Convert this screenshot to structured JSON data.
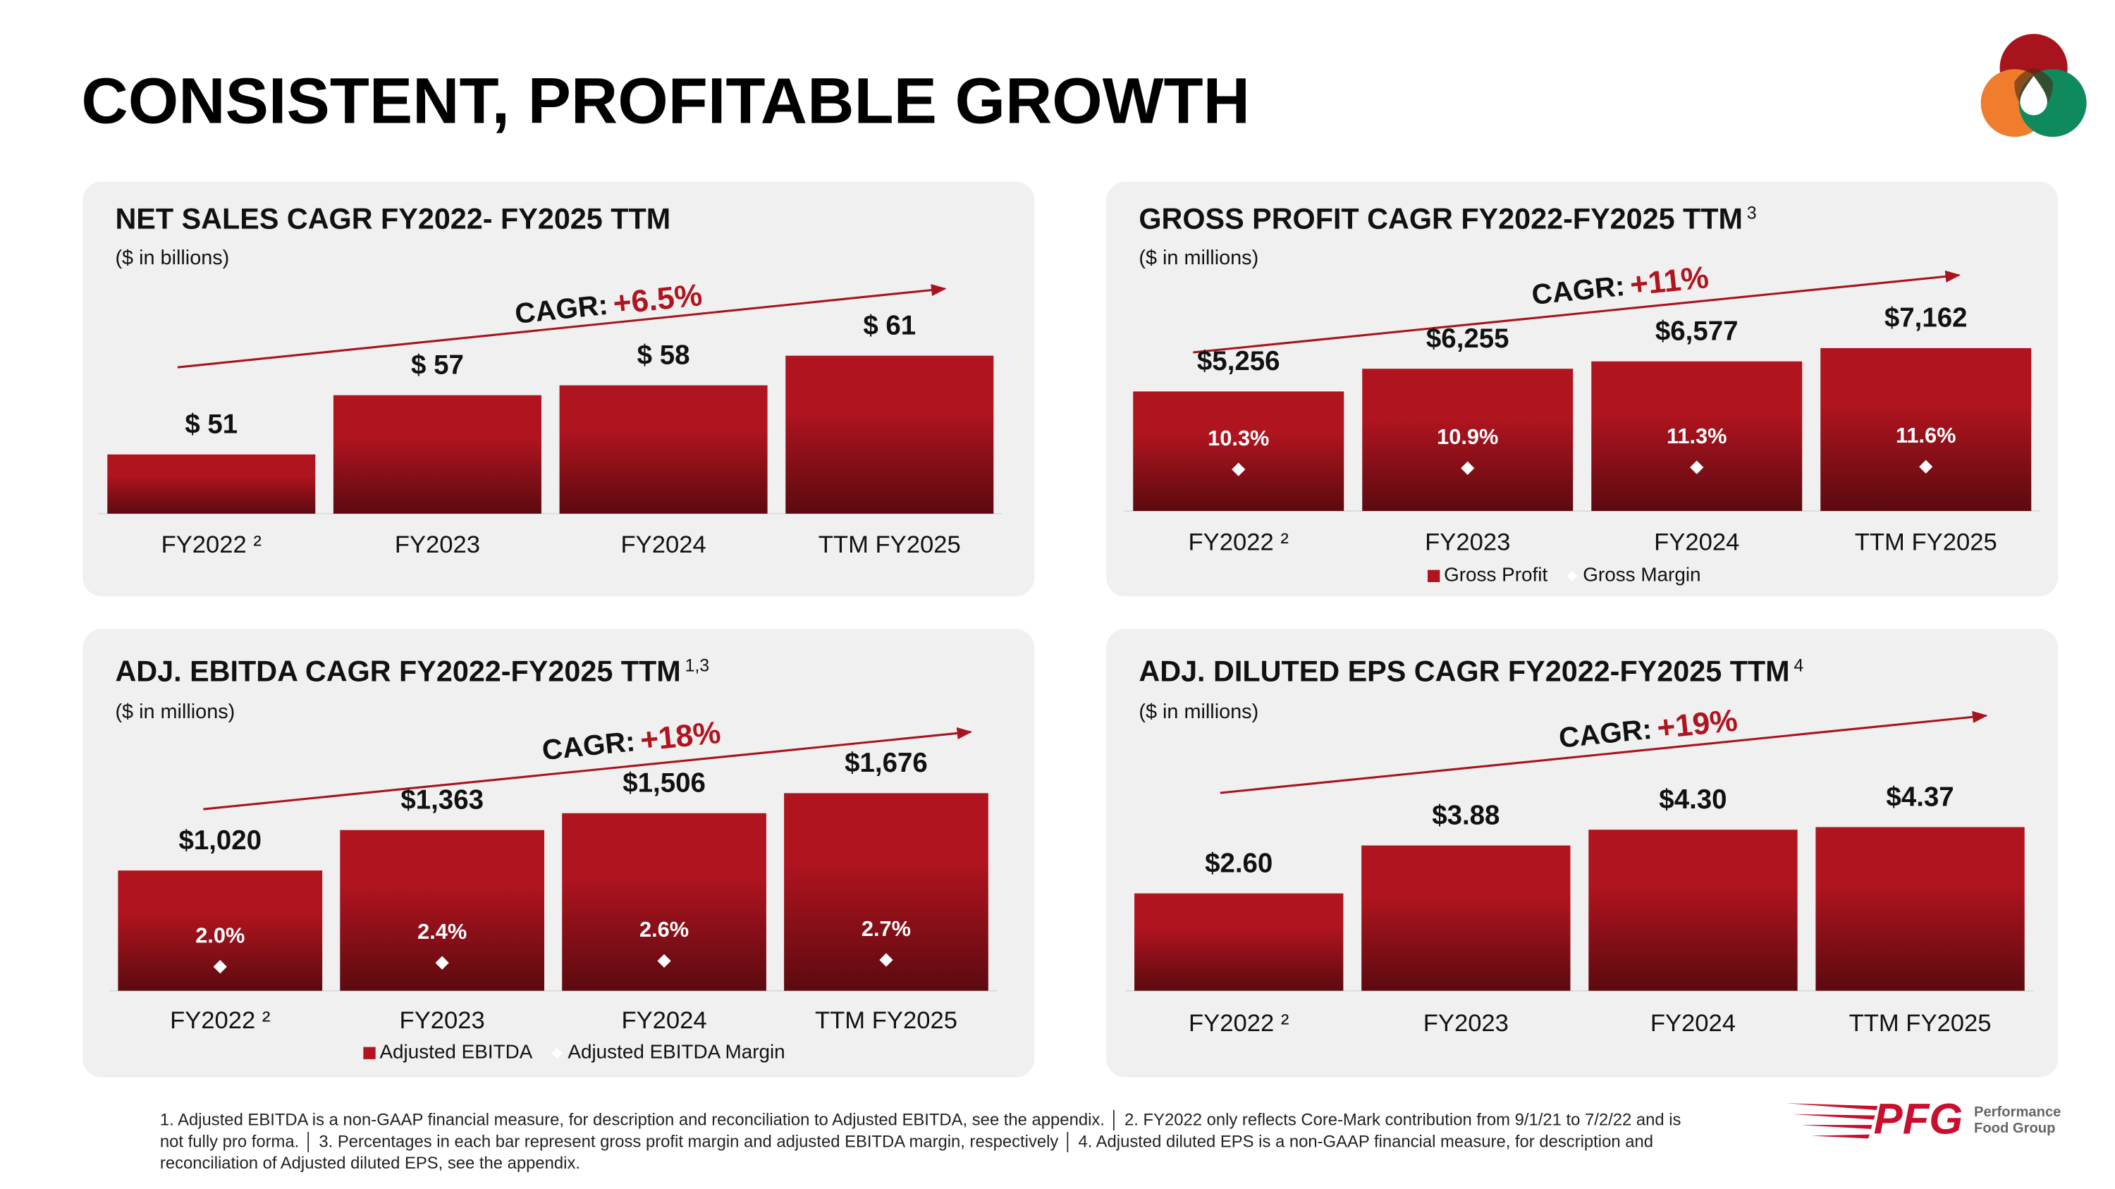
{
  "title": "CONSISTENT, PROFITABLE GROWTH",
  "chart_data": [
    {
      "type": "bar",
      "title": "NET SALES CAGR FY2022- FY2025 TTM",
      "subtitle": "($ in billions)",
      "cagr_label": "CAGR:",
      "cagr_value": "+6.5%",
      "categories": [
        "FY2022 ²",
        "FY2023",
        "FY2024",
        "TTM FY2025"
      ],
      "series": [
        {
          "color": "#b0141f",
          "values": [
            51,
            57,
            58,
            61
          ],
          "value_labels": [
            "$ 51",
            "$ 57",
            "$ 58",
            "$ 61"
          ]
        }
      ],
      "ylim": [
        45,
        66
      ],
      "legend": false
    },
    {
      "type": "bar",
      "title": "GROSS PROFIT CAGR FY2022-FY2025 TTM",
      "title_note": "3",
      "subtitle": "($ in millions)",
      "cagr_label": "CAGR:",
      "cagr_value": "+11%",
      "categories": [
        "FY2022 ²",
        "FY2023",
        "FY2024",
        "TTM FY2025"
      ],
      "series": [
        {
          "name": "Gross Profit",
          "color": "#b0141f",
          "values": [
            5256,
            6255,
            6577,
            7162
          ],
          "value_labels": [
            "$5,256",
            "$6,255",
            "$6,577",
            "$7,162"
          ]
        },
        {
          "name": "Gross Margin",
          "color": "#ffffff",
          "axis": "y2",
          "values": [
            10.3,
            10.9,
            11.3,
            11.6
          ],
          "value_labels": [
            "10.3%",
            "10.9%",
            "11.3%",
            "11.6%"
          ]
        }
      ],
      "ylim": [
        0,
        9000
      ],
      "y2lim": [
        -10,
        90
      ],
      "legend": true
    },
    {
      "type": "bar",
      "title": "ADJ. EBITDA CAGR FY2022-FY2025 TTM",
      "title_note": "1,3",
      "subtitle": "($ in millions)",
      "cagr_label": "CAGR:",
      "cagr_value": "+18%",
      "categories": [
        "FY2022 ²",
        "FY2023",
        "FY2024",
        "TTM FY2025"
      ],
      "series": [
        {
          "name": "Adjusted EBITDA",
          "color": "#b0141f",
          "values": [
            1020,
            1363,
            1506,
            1676
          ],
          "value_labels": [
            "$1,020",
            "$1,363",
            "$1,506",
            "$1,676"
          ]
        },
        {
          "name": "Adjusted EBITDA Margin",
          "color": "#ffffff",
          "axis": "y2",
          "values": [
            2.0,
            2.4,
            2.6,
            2.7
          ],
          "value_labels": [
            "2.0%",
            "2.4%",
            "2.6%",
            "2.7%"
          ]
        }
      ],
      "ylim": [
        0,
        2000
      ],
      "y2lim": [
        -0.5,
        24
      ],
      "legend": true
    },
    {
      "type": "bar",
      "title": "ADJ. DILUTED EPS CAGR FY2022-FY2025 TTM",
      "title_note": "4",
      "subtitle": "($ in millions)",
      "cagr_label": "CAGR:",
      "cagr_value": "+19%",
      "categories": [
        "FY2022 ²",
        "FY2023",
        "FY2024",
        "TTM FY2025"
      ],
      "series": [
        {
          "color": "#b0141f",
          "values": [
            2.6,
            3.88,
            4.3,
            4.37
          ],
          "value_labels": [
            "$2.60",
            "$3.88",
            "$4.30",
            "$4.37"
          ]
        }
      ],
      "ylim": [
        0,
        5.5
      ],
      "legend": false
    }
  ],
  "footnotes": [
    "1. Adjusted EBITDA is a non-GAAP financial measure, for description and reconciliation to Adjusted EBITDA, see the appendix. │ 2. FY2022 only reflects Core-Mark contribution from 9/1/21 to 7/2/22 and is",
    "not fully pro forma. │ 3. Percentages in each bar represent gross profit margin and adjusted EBITDA margin, respectively │ 4. Adjusted diluted EPS is a non-GAAP financial measure, for description and",
    "reconciliation of Adjusted diluted EPS, see the appendix."
  ],
  "logo": {
    "mark": "PFG",
    "name_line1": "Performance",
    "name_line2": "Food Group"
  }
}
